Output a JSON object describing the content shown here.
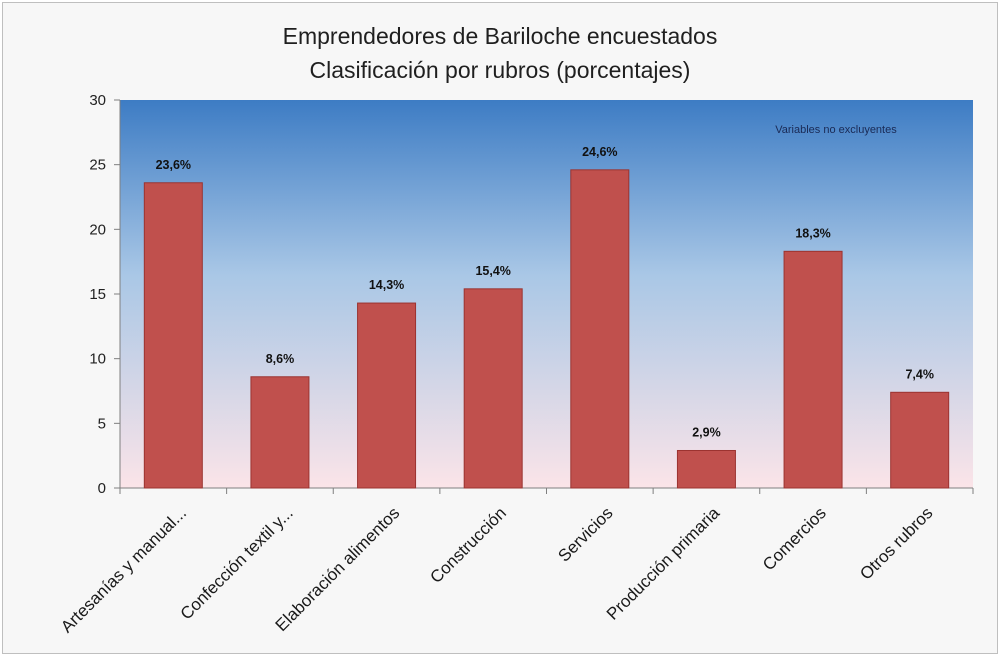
{
  "chart_data": {
    "type": "bar",
    "title": "Emprendedores de Bariloche encuestados",
    "subtitle": "Clasificación por rubros (porcentajes)",
    "annotation": "Variables no excluyentes",
    "categories": [
      "Artesanías y manual...",
      "Confección textil y...",
      "Elaboración alimentos",
      "Construcción",
      "Servicios",
      "Producción primaria",
      "Comercios",
      "Otros rubros"
    ],
    "values": [
      23.6,
      8.6,
      14.3,
      15.4,
      24.6,
      2.9,
      18.3,
      7.4
    ],
    "data_labels": [
      "23,6%",
      "8,6%",
      "14,3%",
      "15,4%",
      "24,6%",
      "2,9%",
      "18,3%",
      "7,4%"
    ],
    "ylim": [
      0,
      30
    ],
    "yticks": [
      0,
      5,
      10,
      15,
      20,
      25,
      30
    ],
    "grid": false,
    "legend": "none",
    "colors": {
      "bar": "#c0504d",
      "bar_edge": "#9b3330",
      "plot_top": "#3d7cc4",
      "plot_bottom": "#fbe4e8"
    }
  }
}
